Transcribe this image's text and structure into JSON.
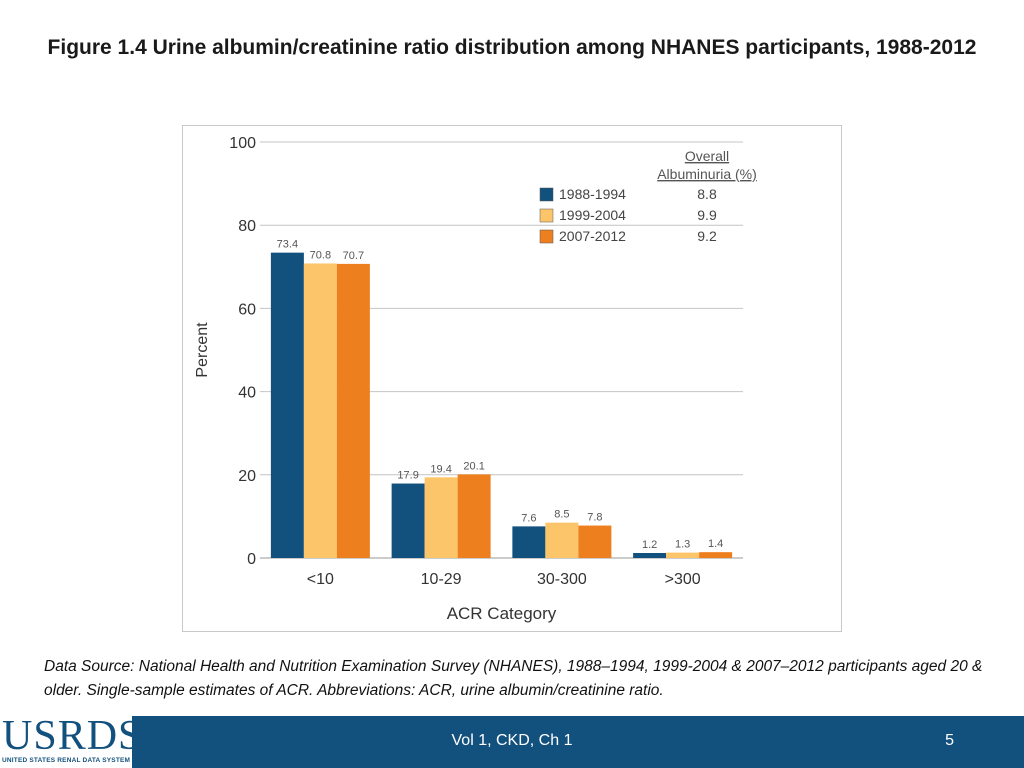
{
  "page": {
    "title": "Figure 1.4 Urine albumin/creatinine ratio distribution among NHANES participants, 1988-2012",
    "source": "Data Source: National Health and Nutrition Examination Survey (NHANES), 1988–1994, 1999-2004 & 2007–2012 participants aged 20 & older. Single-sample estimates of ACR. Abbreviations: ACR, urine albumin/creatinine ratio.",
    "footer_label": "Vol 1, CKD, Ch 1",
    "page_number": "5",
    "logo_text": "USRDS",
    "logo_subtext": "UNITED STATES RENAL DATA SYSTEM"
  },
  "chart_data": {
    "type": "bar",
    "title": "",
    "xlabel": "ACR Category",
    "ylabel": "Percent",
    "ylim": [
      0,
      100
    ],
    "yticks": [
      0,
      20,
      40,
      60,
      80,
      100
    ],
    "grid": true,
    "categories": [
      "<10",
      "10-29",
      "30-300",
      ">300"
    ],
    "series": [
      {
        "name": "1988-1994",
        "color": "#12507d",
        "values": [
          73.4,
          17.9,
          7.6,
          1.2
        ],
        "labels": [
          "73.4",
          "17.9",
          "7.6",
          "1.2"
        ],
        "overall": "8.8"
      },
      {
        "name": "1999-2004",
        "color": "#fdc569",
        "values": [
          70.8,
          19.4,
          8.5,
          1.3
        ],
        "labels": [
          "70.8",
          "19.4",
          "8.5",
          "1.3"
        ],
        "overall": "9.9"
      },
      {
        "name": "2007-2012",
        "color": "#ee7f1e",
        "values": [
          70.7,
          20.1,
          7.8,
          1.4
        ],
        "labels": [
          "70.7",
          "20.1",
          "7.8",
          "1.4"
        ],
        "overall": "9.2"
      }
    ],
    "legend": {
      "position": "top-right",
      "header_line1": "Overall",
      "header_line2": "Albuminuria (%)"
    }
  }
}
